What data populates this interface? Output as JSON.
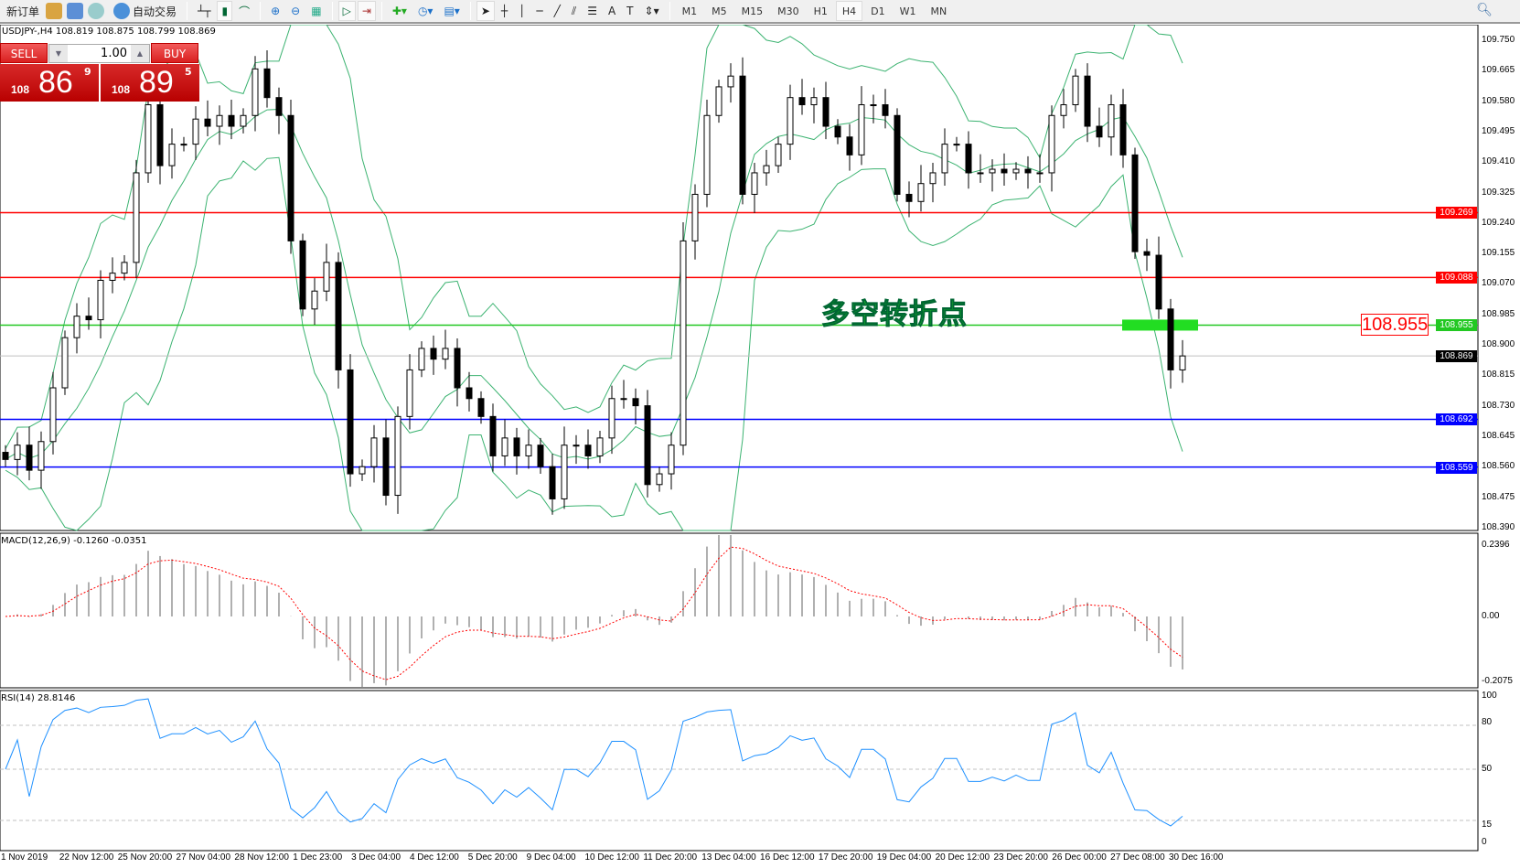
{
  "toolbar": {
    "new_order": "新订单",
    "auto_trading": "自动交易",
    "timeframes": [
      "M1",
      "M5",
      "M15",
      "M30",
      "H1",
      "H4",
      "D1",
      "W1",
      "MN"
    ],
    "active_timeframe": "H4",
    "icons": [
      "chart-bar-icon",
      "candlestick-icon",
      "line-chart-icon",
      "zoom-in-icon",
      "zoom-out-icon",
      "tile-windows-icon",
      "autoscroll-icon",
      "chart-shift-icon",
      "new-chart-icon",
      "periods-icon",
      "templates-icon",
      "cursor-icon",
      "crosshair-icon",
      "vertical-line-icon",
      "horizontal-line-icon",
      "trendline-icon",
      "equidistant-channel-icon",
      "fibonacci-icon",
      "text-icon",
      "text-label-icon",
      "arrows-icon"
    ]
  },
  "symbol_info": "USDJPY-,H4  108.819 108.875 108.799 108.869",
  "trade_panel": {
    "sell_label": "SELL",
    "buy_label": "BUY",
    "lot": "1.00",
    "sell_prefix": "108",
    "sell_big": "86",
    "sell_sup": "9",
    "buy_prefix": "108",
    "buy_big": "89",
    "buy_sup": "5"
  },
  "annotation": {
    "text": "多空转折点",
    "level_label": "108.955"
  },
  "price_axis": [
    "109.750",
    "109.665",
    "109.580",
    "109.495",
    "109.410",
    "109.325",
    "109.240",
    "109.155",
    "109.070",
    "108.985",
    "108.900",
    "108.815",
    "108.730",
    "108.645",
    "108.560",
    "108.475",
    "108.390"
  ],
  "levels": [
    {
      "price": 109.269,
      "label": "109.269",
      "color": "#ff0000"
    },
    {
      "price": 109.088,
      "label": "109.088",
      "color": "#ff0000"
    },
    {
      "price": 108.955,
      "label": "108.955",
      "color": "#22c822"
    },
    {
      "price": 108.869,
      "label": "108.869",
      "color": "#000000"
    },
    {
      "price": 108.692,
      "label": "108.692",
      "color": "#0000ff"
    },
    {
      "price": 108.559,
      "label": "108.559",
      "color": "#0000ff"
    }
  ],
  "closes": [
    108.58,
    108.62,
    108.55,
    108.63,
    108.78,
    108.92,
    108.98,
    108.97,
    109.08,
    109.1,
    109.13,
    109.38,
    109.57,
    109.4,
    109.46,
    109.46,
    109.53,
    109.51,
    109.54,
    109.51,
    109.54,
    109.67,
    109.59,
    109.54,
    109.19,
    109.0,
    109.05,
    109.13,
    108.83,
    108.54,
    108.56,
    108.64,
    108.48,
    108.7,
    108.83,
    108.89,
    108.86,
    108.89,
    108.78,
    108.75,
    108.7,
    108.59,
    108.64,
    108.59,
    108.62,
    108.56,
    108.47,
    108.62,
    108.62,
    108.59,
    108.64,
    108.75,
    108.75,
    108.73,
    108.51,
    108.54,
    108.62,
    109.19,
    109.32,
    109.54,
    109.62,
    109.65,
    109.32,
    109.38,
    109.4,
    109.46,
    109.59,
    109.57,
    109.59,
    109.51,
    109.48,
    109.43,
    109.57,
    109.57,
    109.54,
    109.32,
    109.3,
    109.35,
    109.38,
    109.46,
    109.46,
    109.38,
    109.38,
    109.39,
    109.38,
    109.39,
    109.38,
    109.38,
    109.54,
    109.57,
    109.65,
    109.51,
    109.48,
    109.57,
    109.43,
    109.16,
    109.15,
    109.0,
    108.83,
    108.869
  ],
  "macd": {
    "title": "MACD(12,26,9) -0.1260 -0.0351",
    "axis": [
      "0.2396",
      "0.00",
      "-0.2075"
    ]
  },
  "rsi": {
    "title": "RSI(14) 28.8146",
    "axis": [
      "100",
      "80",
      "50",
      "15",
      "0"
    ]
  },
  "time_axis": [
    "1 Nov 2019",
    "22 Nov 12:00",
    "25 Nov 20:00",
    "27 Nov 04:00",
    "28 Nov 12:00",
    "1 Dec 23:00",
    "3 Dec 04:00",
    "4 Dec 12:00",
    "5 Dec 20:00",
    "9 Dec 04:00",
    "10 Dec 12:00",
    "11 Dec 20:00",
    "13 Dec 04:00",
    "16 Dec 12:00",
    "17 Dec 20:00",
    "19 Dec 04:00",
    "20 Dec 12:00",
    "23 Dec 20:00",
    "26 Dec 00:00",
    "27 Dec 08:00",
    "30 Dec 16:00"
  ],
  "colors": {
    "bands": "#3cb371",
    "macd_signal": "#ff0000",
    "macd_hist": "#b0b0b0",
    "rsi": "#1e90ff",
    "marker": "#22dd22"
  }
}
